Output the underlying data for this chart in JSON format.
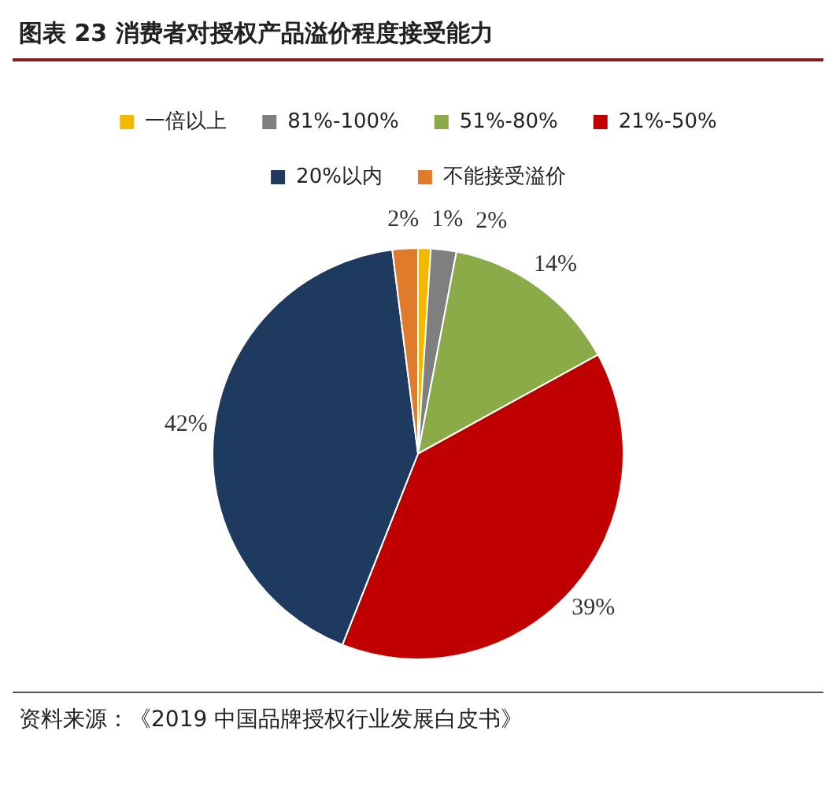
{
  "chart_data": {
    "type": "pie",
    "title": "图表 23    消费者对授权产品溢价程度接受能力",
    "categories": [
      "一倍以上",
      "81%-100%",
      "51%-80%",
      "21%-50%",
      "20%以内",
      "不能接受溢价"
    ],
    "values": [
      1,
      2,
      14,
      39,
      42,
      2
    ],
    "value_labels": [
      "1%",
      "2%",
      "14%",
      "39%",
      "42%",
      "2%"
    ],
    "colors": [
      "#f5b800",
      "#7f7f7f",
      "#8aab47",
      "#c00000",
      "#1f3a5f",
      "#e07b2c"
    ],
    "legend": "top",
    "annotations": [
      "资料来源：《2019 中国品牌授权行业发展白皮书》"
    ]
  }
}
